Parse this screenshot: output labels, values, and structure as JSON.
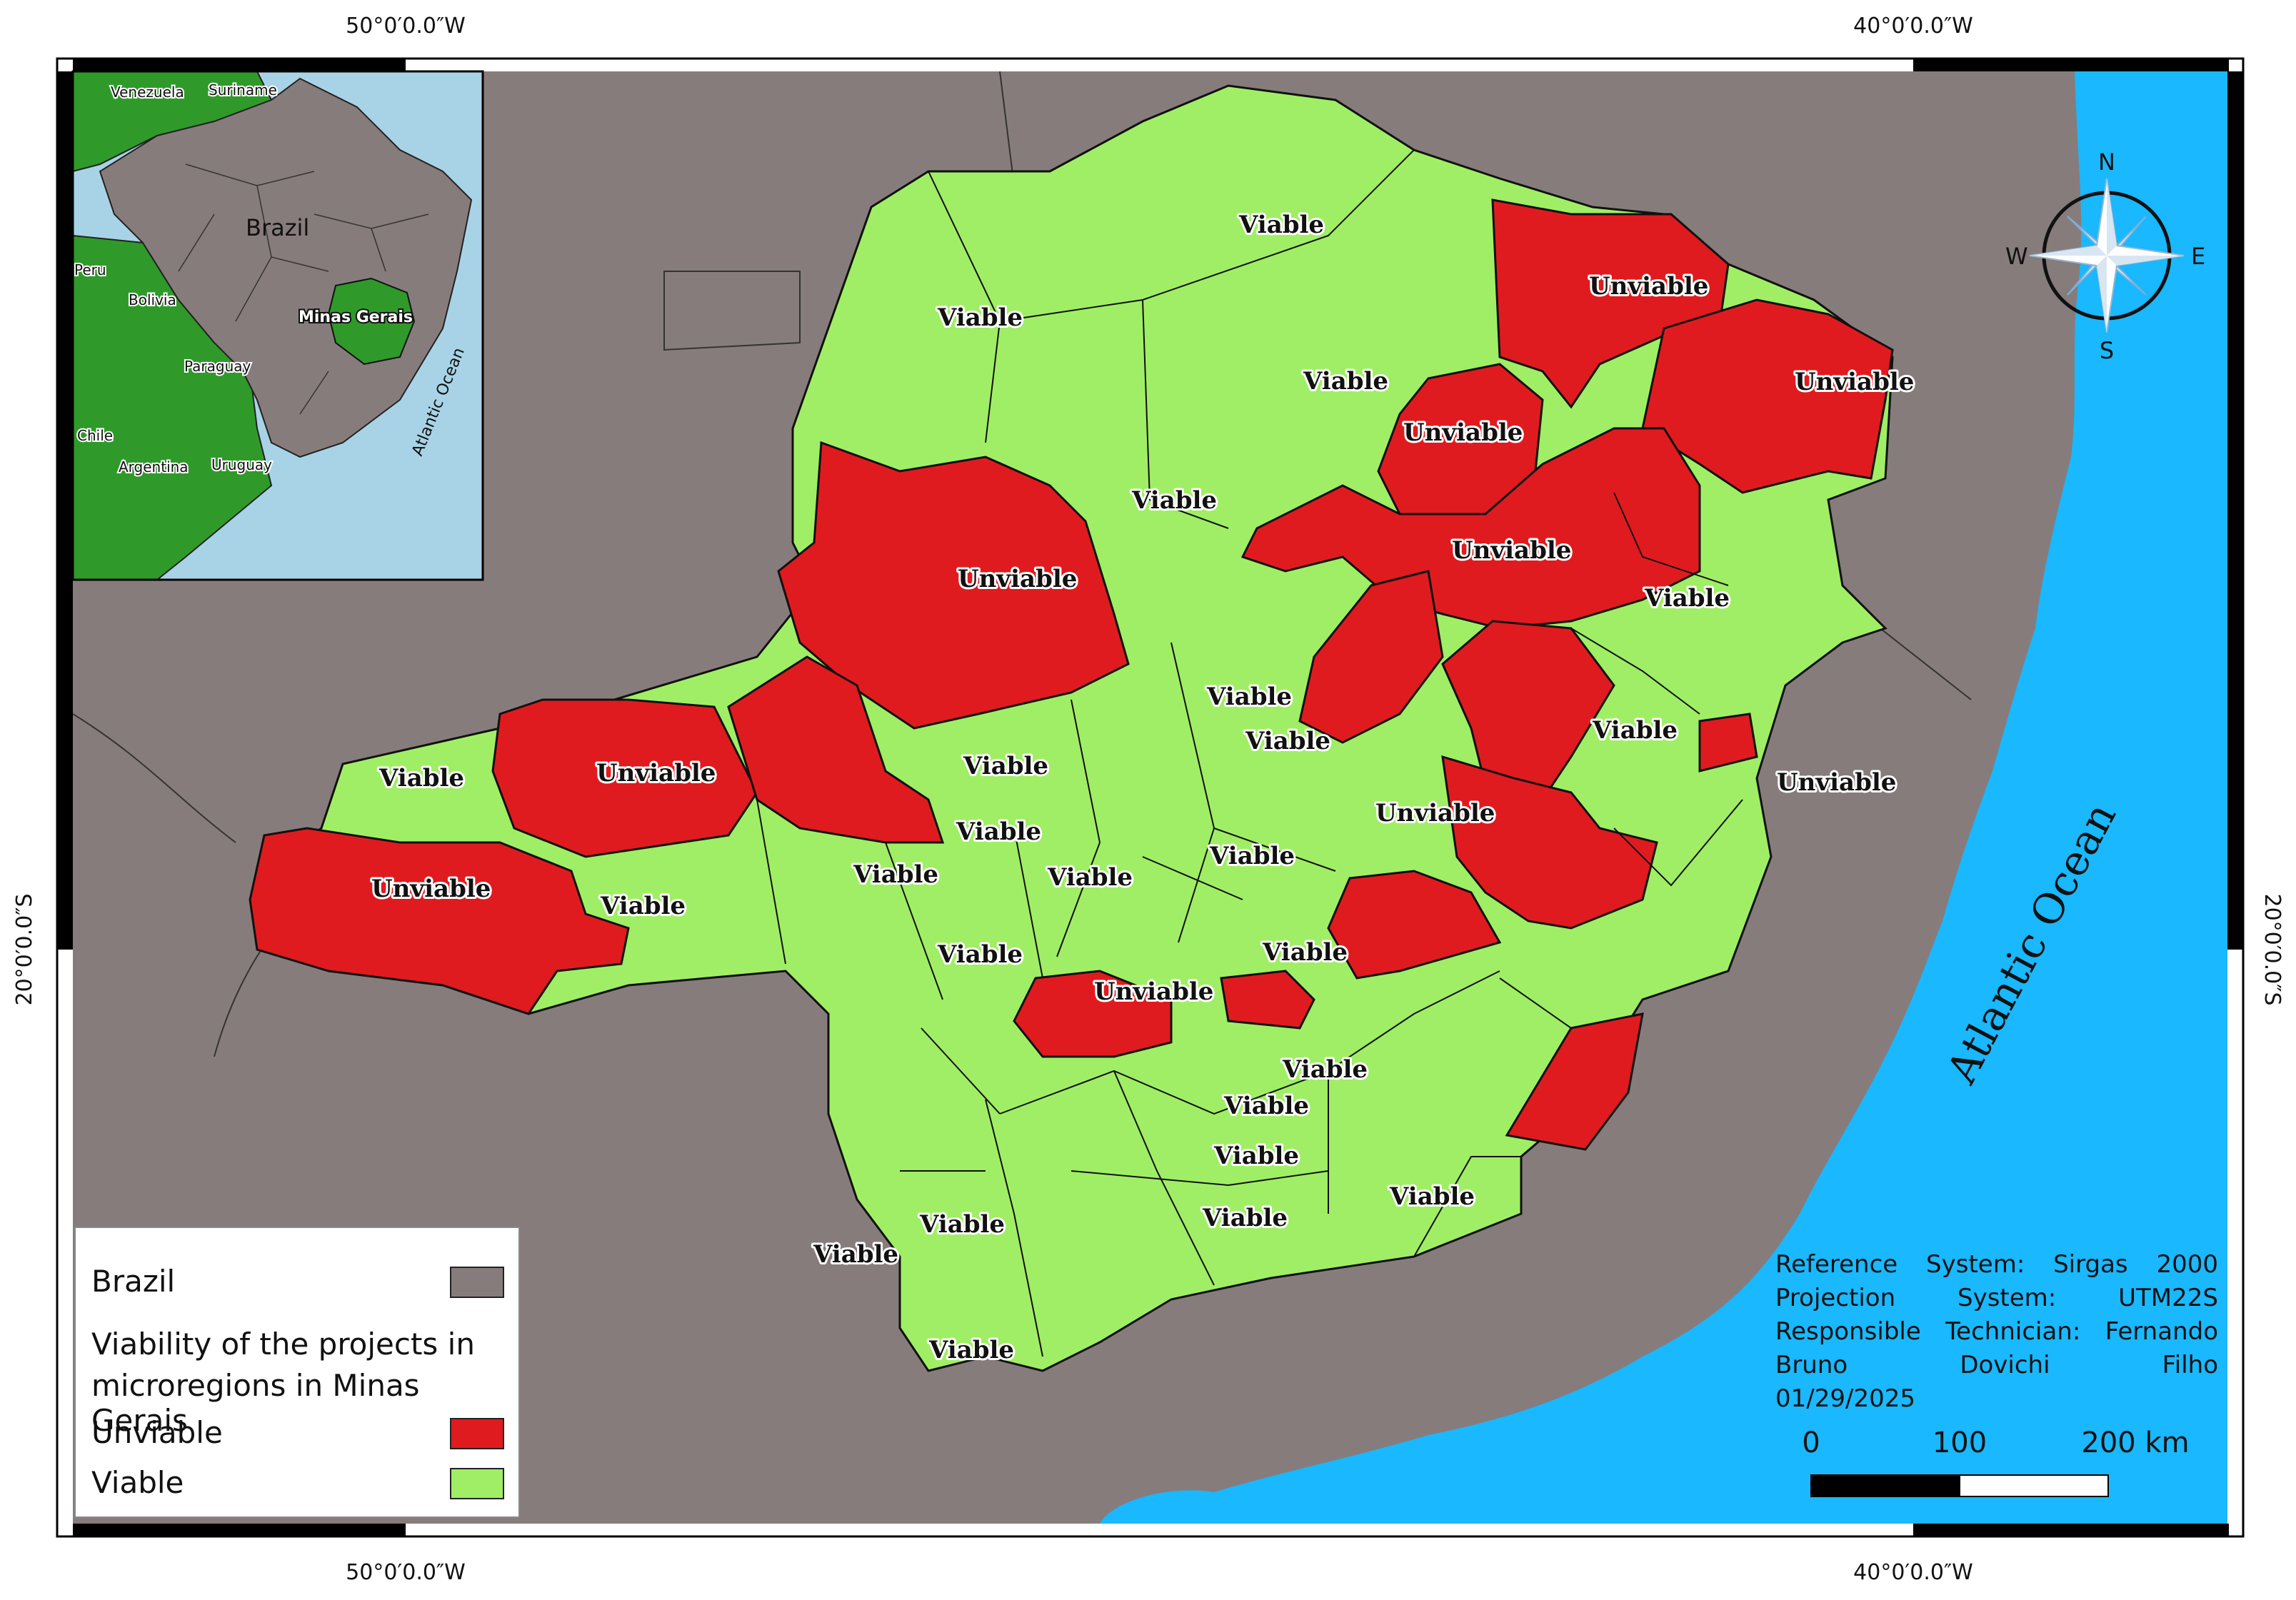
{
  "colors": {
    "brazil": "#877c7c",
    "ocean": "#19b8ff",
    "unviable": "#e01b1f",
    "viable": "#a0ee65",
    "inset_ocean": "#a8d3e6",
    "inset_country": "#2f9a2a",
    "inset_brazil": "#877c7c"
  },
  "graticule": {
    "top": [
      "50°0′0.0″W",
      "40°0′0.0″W"
    ],
    "bottom": [
      "50°0′0.0″W",
      "40°0′0.0″W"
    ],
    "left": "20°0′0.0″S",
    "right": "20°0′0.0″S"
  },
  "inset": {
    "countries": [
      "Venezuela",
      "Suriname",
      "Peru",
      "Bolivia",
      "Paraguay",
      "Chile",
      "Argentina",
      "Uruguay"
    ],
    "brazil": "Brazil",
    "state": "Minas Gerais",
    "ocean": "Atlantic Ocean"
  },
  "ocean_label": "Atlantic Ocean",
  "compass": {
    "n": "N",
    "s": "S",
    "e": "E",
    "w": "W"
  },
  "map_labels": {
    "viable": "Viable",
    "unviable": "Unviable"
  },
  "legend": {
    "brazil": "Brazil",
    "title_line1": "Viability of the projects in",
    "title_line2": "microregions in Minas Gerais",
    "unviable": "Unviable",
    "viable": "Viable"
  },
  "info": {
    "line1": [
      "Reference",
      "System:",
      "Sirgas",
      "2000"
    ],
    "line2": [
      "Projection",
      "System:",
      "UTM22S"
    ],
    "line3": [
      "Responsible",
      "Technician:",
      "Fernando"
    ],
    "line4": [
      "Bruno",
      "Dovichi",
      "Filho"
    ],
    "line5": "01/29/2025"
  },
  "scale_bar": {
    "labels": [
      "0",
      "100",
      "200 km"
    ]
  }
}
